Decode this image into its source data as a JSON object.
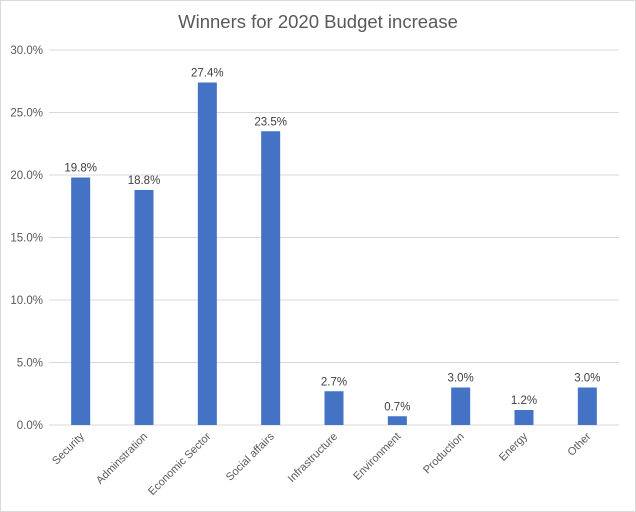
{
  "chart_data": {
    "type": "bar",
    "title": "Winners for 2020 Budget increase",
    "categories": [
      "Security",
      "Adminstration",
      "Economic Sector",
      "Social affairs",
      "Infrastructure",
      "Environment",
      "Production",
      "Energy",
      "Other"
    ],
    "values": [
      19.8,
      18.8,
      27.4,
      23.5,
      2.7,
      0.7,
      3.0,
      1.2,
      3.0
    ],
    "data_labels": [
      "19.8%",
      "18.8%",
      "27.4%",
      "23.5%",
      "2.7%",
      "0.7%",
      "3.0%",
      "1.2%",
      "3.0%"
    ],
    "y_ticks": [
      "0.0%",
      "5.0%",
      "10.0%",
      "15.0%",
      "20.0%",
      "25.0%",
      "30.0%"
    ],
    "ylim": [
      0,
      30
    ],
    "xlabel": "",
    "ylabel": "",
    "grid": true,
    "bar_color": "#4472c4",
    "grid_color": "#d9d9d9",
    "legend": "none"
  }
}
